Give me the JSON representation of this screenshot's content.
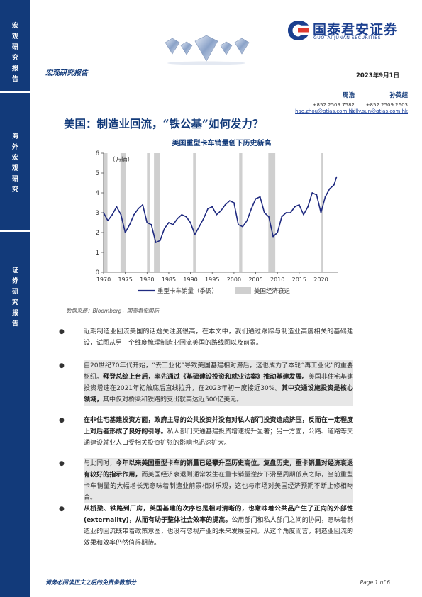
{
  "sidebar": {
    "section1": "宏观研究报告",
    "section2": "海外宏观研究",
    "section3": "证券研究报告"
  },
  "logo": {
    "name_cn": "国泰君安证券",
    "name_en": "GUOTAI JUNAN SECURITIES"
  },
  "header": {
    "report_type": "宏观研究报告",
    "date": "2023年9月1日"
  },
  "authors": [
    {
      "name": "周浩",
      "phone": "+852 2509 7582",
      "email": "hao.zhou@gtjas.com.hk"
    },
    {
      "name": "孙英超",
      "phone": "+852 2509 2603",
      "email": "billy.sun@gtjas.com.hk"
    }
  ],
  "title": "美国：制造业回流，“铁公基”如何发力？",
  "chart_title": "美国重型卡车销量创下历史新高",
  "chart_data": {
    "type": "line",
    "unit_label": "（万辆）",
    "ylim": [
      0,
      6
    ],
    "yticks": [
      0,
      1,
      2,
      3,
      4,
      5,
      6
    ],
    "xlim": [
      1970,
      2024
    ],
    "xticks": [
      1970,
      1975,
      1980,
      1985,
      1990,
      1995,
      2000,
      2005,
      2010,
      2015,
      2020
    ],
    "series": [
      {
        "name": "重型卡车销量（季调）",
        "color": "#1f2a80",
        "x": [
          1970,
          1971,
          1972,
          1973,
          1974,
          1975,
          1976,
          1977,
          1978,
          1979,
          1980,
          1981,
          1982,
          1983,
          1984,
          1985,
          1986,
          1987,
          1988,
          1989,
          1990,
          1991,
          1992,
          1993,
          1994,
          1995,
          1996,
          1997,
          1998,
          1999,
          2000,
          2001,
          2002,
          2003,
          2004,
          2005,
          2006,
          2007,
          2008,
          2009,
          2010,
          2011,
          2012,
          2013,
          2014,
          2015,
          2016,
          2017,
          2018,
          2019,
          2020,
          2021,
          2022,
          2023,
          2023.6
        ],
        "y": [
          3.0,
          2.6,
          2.9,
          3.3,
          2.9,
          2.0,
          2.4,
          2.9,
          3.2,
          3.4,
          2.5,
          2.4,
          1.5,
          1.6,
          2.2,
          2.5,
          2.4,
          2.7,
          2.9,
          2.8,
          2.5,
          1.9,
          2.3,
          2.7,
          3.2,
          3.3,
          2.9,
          3.1,
          3.4,
          3.6,
          3.5,
          2.4,
          2.3,
          2.6,
          3.2,
          3.7,
          3.8,
          3.0,
          2.8,
          1.8,
          2.0,
          2.8,
          3.0,
          3.0,
          3.3,
          3.4,
          2.9,
          3.3,
          4.0,
          3.9,
          3.0,
          3.8,
          4.2,
          4.4,
          4.8
        ]
      }
    ],
    "recessions": [
      [
        1969.9,
        1970.9
      ],
      [
        1973.9,
        1975.2
      ],
      [
        1980.0,
        1980.6
      ],
      [
        1981.6,
        1982.9
      ],
      [
        1990.6,
        1991.2
      ],
      [
        2001.2,
        2001.9
      ],
      [
        2007.9,
        2009.5
      ],
      [
        2020.1,
        2020.4
      ]
    ],
    "legend": [
      {
        "label": "重型卡车销量（季调）",
        "kind": "line",
        "color": "#1f2a80"
      },
      {
        "label": "美国经济衰退",
        "kind": "area",
        "color": "#cfcfcf"
      }
    ]
  },
  "source": "数据来源：Bloomberg，国泰君安国际",
  "bullets": [
    {
      "bullet": "●",
      "text": "近期制造业回流美国的话题关注度很高，在本文中，我们通过跟踪与制造业高度相关的基础建设，试图从另一个维度梳理制造业回流美国的路线图以及前景。"
    },
    {
      "bullet": "●",
      "text_a": "自20世纪70年代开始，“去工业化”导致美国基建相对滞后，这也成为了本轮“再工业化”的重要枢纽。",
      "strong_a": "拜登总统上台后，率先通过《基础建设投资和就业法案》推动基建发展。",
      "text_b": "美国非住宅基建投资增速在2021年初触底后直线拉升，在2023年初一度接近30%。",
      "strong_b": "其中交通设施投资是核心领域，",
      "text_c": "其中仅对桥梁和铁路的支出就高达近500亿美元。"
    },
    {
      "bullet": "●",
      "strong_a": "在非住宅基建投资方面，政府主导的公共投资并没有对私人部门投资造成挤压，反而在一定程度上对后者形成了良好的引导。",
      "text_a": "私人部门交通基建投资增速提升显著；另一方面，公路、道路等交通建设就业人口受相关投资扩张的影响也迅速扩大。"
    },
    {
      "bullet": "●",
      "text_a": "与此同时，",
      "strong_a": "今年以来美国重型卡车的销量已经攀升至历史高位。复盘历史，重卡销量对经济衰退有较好的指示作用，",
      "text_b": "而美国经济衰退则通常发生在重卡销量逆步下滑至周期低点之际，当前重型卡车销量的大幅增长无意味着制造业前景相对乐观，这也与市场对美国经济预期不断上修相吻合。"
    },
    {
      "bullet": "●",
      "strong_a": "从桥梁、铁路到厂房，美国基建的次序也是相对清晰的，也意味着公共品产生了正向的外部性(externality)，从而有助于整体社会效率的提高。",
      "text_a": "公用部门和私人部门之间的协同，意味着制造业的回流既带着政策意图，也没有忽视产业的未来发展空间。从这个角度而言，制造业回流的效果和效率仍然值得期待。"
    }
  ],
  "footer": {
    "disclaimer": "请务必阅读正文之后的免责条款部分",
    "page": "Page 1 of 6"
  }
}
